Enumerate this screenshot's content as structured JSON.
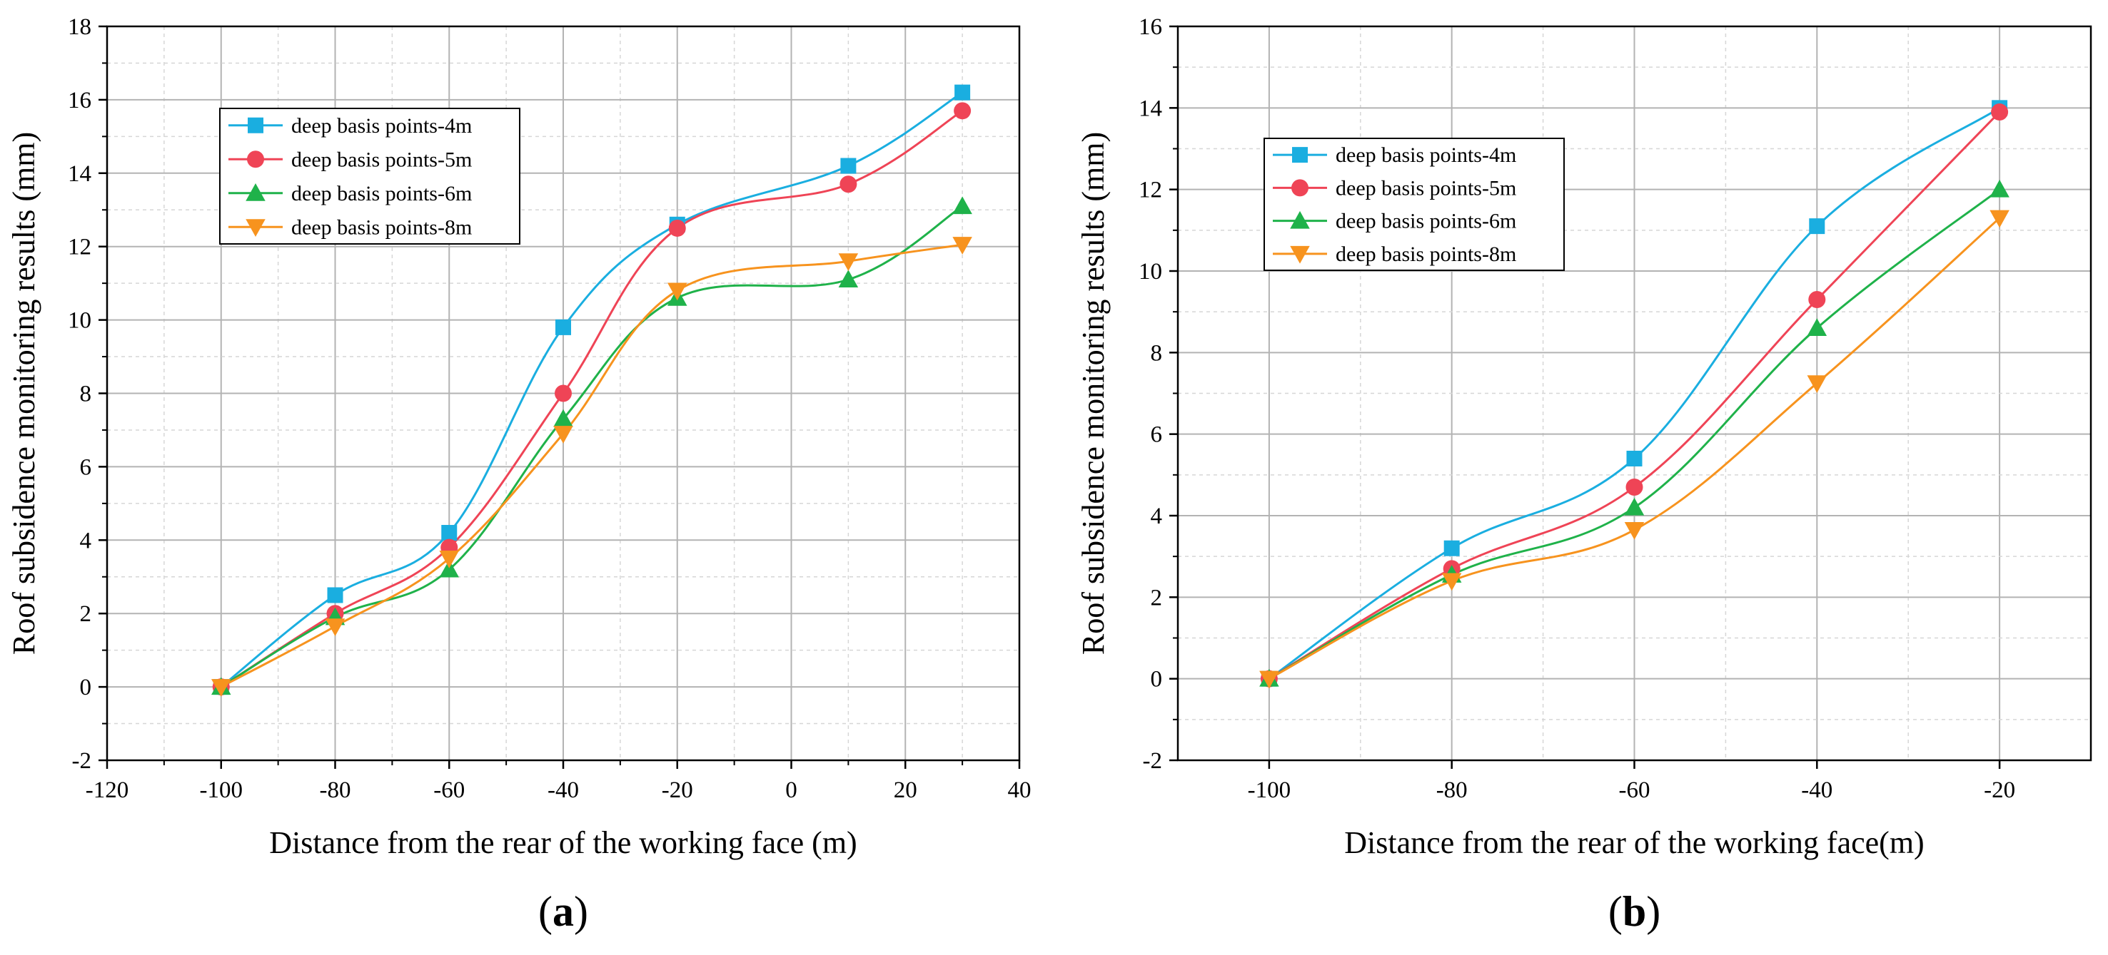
{
  "chart_data": [
    {
      "type": "line",
      "panel_label": "(a)",
      "panel_letter": "a",
      "xlabel": "Distance from the rear of the working face (m)",
      "ylabel": "Roof subsidence monitoring results (mm)",
      "xlim": [
        -120,
        40
      ],
      "ylim": [
        -2,
        18
      ],
      "xticks": [
        -120,
        -100,
        -80,
        -60,
        -40,
        -20,
        0,
        20,
        40
      ],
      "yticks": [
        -2,
        0,
        2,
        4,
        6,
        8,
        10,
        12,
        14,
        16,
        18
      ],
      "xtick_labels": [
        "-120",
        "-100",
        "-80",
        "-60",
        "-40",
        "-20",
        "0",
        "20",
        "40"
      ],
      "ytick_labels": [
        "-2",
        "0",
        "2",
        "4",
        "6",
        "8",
        "10",
        "12",
        "14",
        "16",
        "18"
      ],
      "grid": true,
      "legend_position": "upper-left",
      "x": [
        -100,
        -80,
        -60,
        -40,
        -20,
        10,
        30
      ],
      "series": [
        {
          "name": "deep basis points-4m",
          "marker": "square",
          "color": "#1aaee0",
          "values": [
            0,
            2.5,
            4.2,
            9.8,
            12.6,
            14.2,
            16.2
          ]
        },
        {
          "name": "deep basis points-5m",
          "marker": "circle",
          "color": "#ef4456",
          "values": [
            0,
            2.0,
            3.8,
            8.0,
            12.5,
            13.7,
            15.7
          ]
        },
        {
          "name": "deep basis points-6m",
          "marker": "triangle-up",
          "color": "#1fb24a",
          "values": [
            0,
            1.9,
            3.2,
            7.3,
            10.6,
            11.1,
            13.1
          ]
        },
        {
          "name": "deep basis points-8m",
          "marker": "triangle-down",
          "color": "#f7931e",
          "values": [
            0,
            1.65,
            3.5,
            6.9,
            10.8,
            11.6,
            12.05
          ]
        }
      ]
    },
    {
      "type": "line",
      "panel_label": "(b)",
      "panel_letter": "b",
      "xlabel": "Distance from the rear of the working face(m)",
      "ylabel": "Roof subsidence monitoring results (mm)",
      "xlim": [
        -110,
        -10
      ],
      "ylim": [
        -2,
        16
      ],
      "xticks": [
        -100,
        -80,
        -60,
        -40,
        -20
      ],
      "yticks": [
        -2,
        0,
        2,
        4,
        6,
        8,
        10,
        12,
        14,
        16
      ],
      "xtick_labels": [
        "-100",
        "-80",
        "-60",
        "-40",
        "-20"
      ],
      "ytick_labels": [
        "-2",
        "0",
        "2",
        "4",
        "6",
        "8",
        "10",
        "12",
        "14",
        "16"
      ],
      "grid": true,
      "legend_position": "upper-left",
      "x": [
        -100,
        -80,
        -60,
        -40,
        -20
      ],
      "series": [
        {
          "name": "deep basis points-4m",
          "marker": "square",
          "color": "#1aaee0",
          "values": [
            0,
            3.2,
            5.4,
            11.1,
            14.0
          ]
        },
        {
          "name": "deep basis points-5m",
          "marker": "circle",
          "color": "#ef4456",
          "values": [
            0,
            2.7,
            4.7,
            9.3,
            13.9
          ]
        },
        {
          "name": "deep basis points-6m",
          "marker": "triangle-up",
          "color": "#1fb24a",
          "values": [
            0,
            2.55,
            4.2,
            8.6,
            12.0
          ]
        },
        {
          "name": "deep basis points-8m",
          "marker": "triangle-down",
          "color": "#f7931e",
          "values": [
            0,
            2.4,
            3.65,
            7.25,
            11.3
          ]
        }
      ]
    }
  ]
}
